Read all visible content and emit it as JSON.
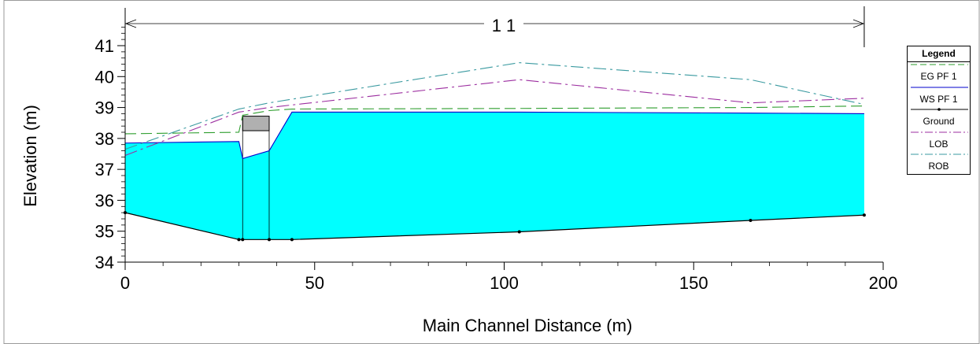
{
  "chart_data": {
    "type": "line",
    "title": "",
    "reach_label": "1 1",
    "xlabel": "Main Channel Distance (m)",
    "ylabel": "Elevation (m)",
    "xlim": [
      0,
      200
    ],
    "ylim": [
      34,
      41
    ],
    "x_ticks": [
      "0",
      "50",
      "100",
      "150",
      "200"
    ],
    "y_ticks": [
      "34",
      "35",
      "36",
      "37",
      "38",
      "39",
      "40",
      "41"
    ],
    "reach_extent": [
      0,
      195
    ],
    "legend": {
      "title": "Legend",
      "placement": "right",
      "entries": [
        "EG  PF 1",
        "WS  PF 1",
        "Ground",
        "LOB",
        "ROB"
      ]
    },
    "colors": {
      "water_fill": "#00ffff",
      "ws_line": "#0000cc",
      "eg_line": "#2e9e2e",
      "ground": "#000000",
      "lob": "#9c2ea0",
      "rob": "#3a9aa0",
      "culvert_deck": "#b0b0b0"
    },
    "series": [
      {
        "name": "EG  PF 1",
        "style": "dashed",
        "x": [
          0,
          30,
          31,
          38,
          44,
          104,
          165,
          195
        ],
        "y": [
          38.15,
          38.2,
          38.75,
          38.9,
          38.95,
          38.97,
          39.0,
          39.05
        ]
      },
      {
        "name": "WS  PF 1",
        "style": "solid",
        "x": [
          0,
          30,
          31,
          38,
          44,
          104,
          165,
          195
        ],
        "y": [
          37.85,
          37.9,
          37.35,
          37.6,
          38.85,
          38.85,
          38.82,
          38.8
        ]
      },
      {
        "name": "Ground",
        "style": "solid",
        "x": [
          0,
          30,
          31,
          38,
          44,
          104,
          165,
          195
        ],
        "y": [
          35.6,
          34.73,
          34.73,
          34.73,
          34.73,
          34.98,
          35.35,
          35.52
        ]
      },
      {
        "name": "LOB",
        "style": "dashdot",
        "x": [
          0,
          30,
          38,
          104,
          165,
          195
        ],
        "y": [
          37.45,
          38.85,
          39.0,
          39.9,
          39.15,
          39.3
        ]
      },
      {
        "name": "ROB",
        "style": "dashdot",
        "x": [
          0,
          30,
          38,
          104,
          165,
          195
        ],
        "y": [
          37.65,
          38.95,
          39.15,
          40.45,
          39.9,
          39.1
        ]
      }
    ],
    "culvert": {
      "x": [
        31,
        38
      ],
      "top": 38.72,
      "bottom": 38.25
    }
  }
}
